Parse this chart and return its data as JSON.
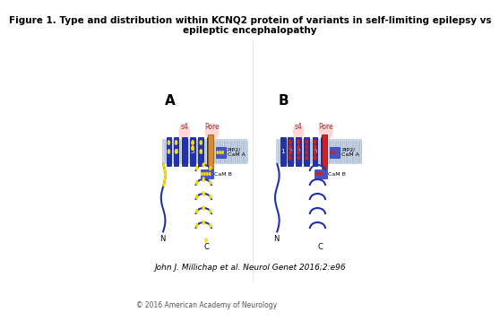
{
  "title_line1": "Figure 1. Type and distribution within KCNQ2 protein of variants in self-limiting epilepsy vs",
  "title_line2": "epileptic encephalopathy",
  "attribution": "John J. Millichap et al. Neurol Genet 2016;2:e96",
  "copyright": "© 2016 American Academy of Neurology",
  "bg_color": "#ffffff",
  "title_fontsize": 7.5,
  "attr_fontsize": 6.5,
  "copy_fontsize": 5.5,
  "panel_A_label": "A",
  "panel_B_label": "B",
  "membrane_color": "#2233aa",
  "membrane_stripe_color": "#aabbcc",
  "yellow_dot_color": "#ffdd00",
  "red_dot_color": "#cc2222",
  "pink_highlight": "#ffbbbb",
  "s4_label": "s4",
  "pore_label": "Pore",
  "pip2_cama_label": "PIP2/\nCaM A",
  "camb_label": "CaM B",
  "N_label": "N",
  "C_label": "C"
}
